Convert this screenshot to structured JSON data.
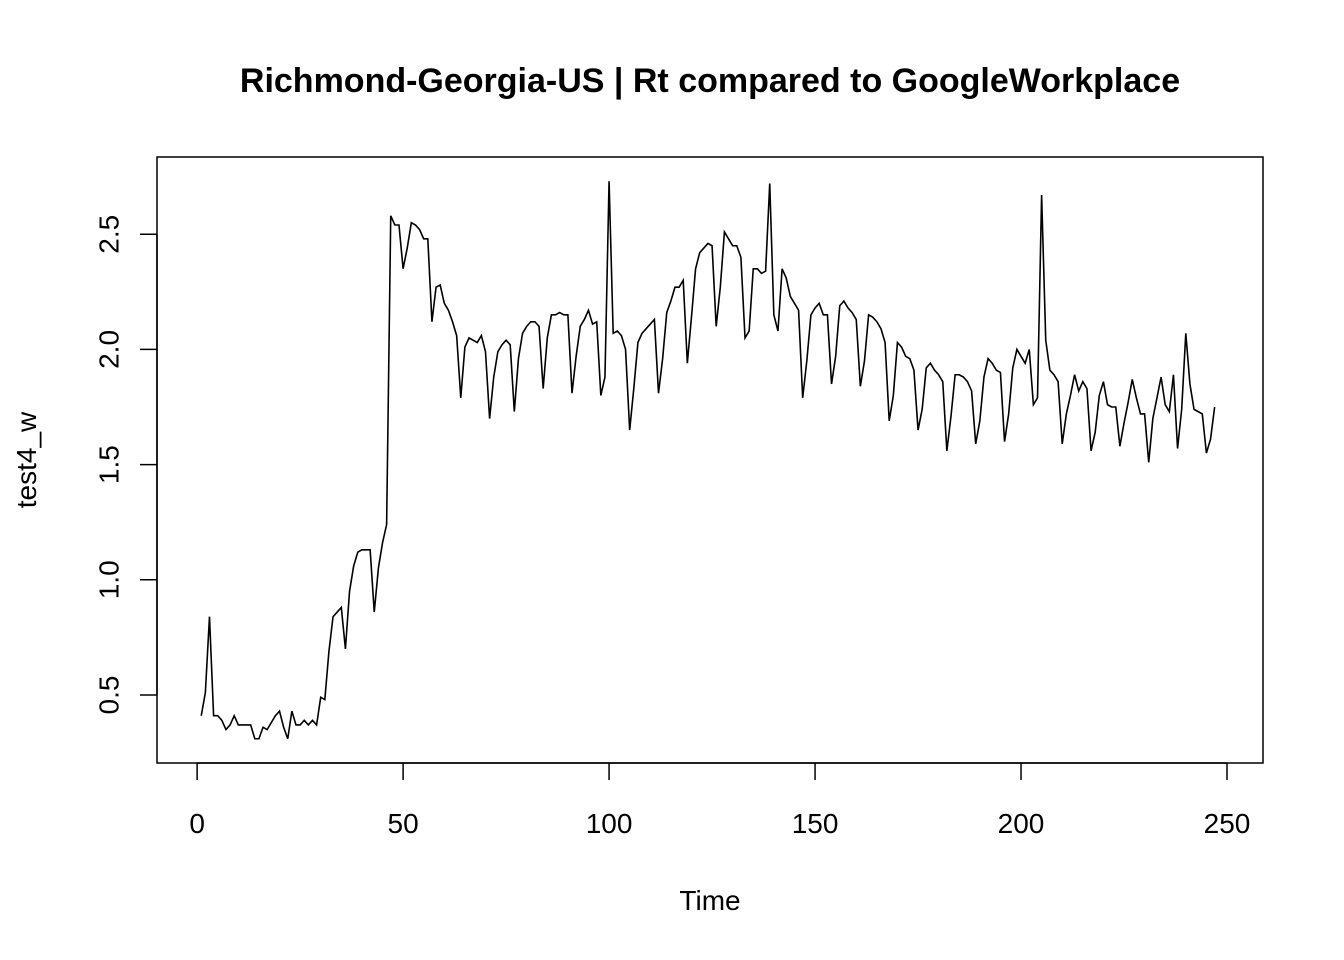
{
  "chart_data": {
    "type": "line",
    "title": "Richmond-Georgia-US | Rt compared to GoogleWorkplace",
    "xlabel": "Time",
    "ylabel": "test4_w",
    "xlim": [
      1,
      248
    ],
    "ylim": [
      0.31,
      2.73
    ],
    "x_ticks": [
      0,
      50,
      100,
      150,
      200,
      250
    ],
    "y_ticks": [
      0.5,
      1.0,
      1.5,
      2.0,
      2.5
    ],
    "x_tick_labels": [
      "0",
      "50",
      "100",
      "150",
      "200",
      "250"
    ],
    "y_tick_labels": [
      "0.5",
      "1.0",
      "1.5",
      "2.0",
      "2.5"
    ],
    "grid": false,
    "legend": "none",
    "series_color": "#000000",
    "series": [
      {
        "x_start": 1,
        "values": [
          0.41,
          0.51,
          0.84,
          0.41,
          0.41,
          0.39,
          0.35,
          0.37,
          0.41,
          0.37,
          0.37,
          0.37,
          0.37,
          0.31,
          0.31,
          0.36,
          0.35,
          0.38,
          0.41,
          0.43,
          0.36,
          0.31,
          0.43,
          0.37,
          0.37,
          0.39,
          0.37,
          0.39,
          0.37,
          0.49,
          0.48,
          0.69,
          0.84,
          0.86,
          0.88,
          0.7,
          0.95,
          1.06,
          1.12,
          1.13,
          1.13,
          1.13,
          0.86,
          1.05,
          1.16,
          1.24,
          2.58,
          2.54,
          2.54,
          2.35,
          2.44,
          2.55,
          2.54,
          2.52,
          2.48,
          2.48,
          2.12,
          2.27,
          2.28,
          2.2,
          2.17,
          2.12,
          2.06,
          1.79,
          2.01,
          2.05,
          2.04,
          2.03,
          2.06,
          1.99,
          1.7,
          1.88,
          1.99,
          2.02,
          2.04,
          2.02,
          1.73,
          1.96,
          2.07,
          2.1,
          2.12,
          2.12,
          2.1,
          1.83,
          2.05,
          2.15,
          2.15,
          2.16,
          2.15,
          2.15,
          1.81,
          1.97,
          2.1,
          2.13,
          2.17,
          2.11,
          2.12,
          1.8,
          1.88,
          2.73,
          2.07,
          2.08,
          2.06,
          2.0,
          1.65,
          1.83,
          2.03,
          2.07,
          2.09,
          2.11,
          2.13,
          1.81,
          1.96,
          2.16,
          2.21,
          2.27,
          2.27,
          2.3,
          1.94,
          2.14,
          2.35,
          2.42,
          2.44,
          2.46,
          2.45,
          2.1,
          2.27,
          2.51,
          2.48,
          2.45,
          2.45,
          2.4,
          2.05,
          2.08,
          2.35,
          2.35,
          2.33,
          2.34,
          2.72,
          2.15,
          2.08,
          2.35,
          2.31,
          2.23,
          2.2,
          2.17,
          1.79,
          1.95,
          2.15,
          2.18,
          2.2,
          2.15,
          2.15,
          1.85,
          1.97,
          2.19,
          2.21,
          2.18,
          2.16,
          2.13,
          1.84,
          1.95,
          2.15,
          2.14,
          2.12,
          2.09,
          2.03,
          1.69,
          1.8,
          2.03,
          2.01,
          1.97,
          1.96,
          1.91,
          1.65,
          1.74,
          1.92,
          1.94,
          1.91,
          1.89,
          1.86,
          1.56,
          1.71,
          1.89,
          1.89,
          1.88,
          1.86,
          1.82,
          1.59,
          1.69,
          1.88,
          1.96,
          1.94,
          1.91,
          1.9,
          1.6,
          1.72,
          1.92,
          2.0,
          1.97,
          1.94,
          2.0,
          1.76,
          1.79,
          2.67,
          2.04,
          1.91,
          1.89,
          1.86,
          1.59,
          1.72,
          1.8,
          1.89,
          1.82,
          1.86,
          1.83,
          1.56,
          1.64,
          1.8,
          1.86,
          1.76,
          1.75,
          1.75,
          1.58,
          1.68,
          1.77,
          1.87,
          1.79,
          1.72,
          1.72,
          1.51,
          1.7,
          1.79,
          1.88,
          1.76,
          1.73,
          1.89,
          1.57,
          1.74,
          2.07,
          1.85,
          1.74,
          1.73,
          1.72,
          1.55,
          1.61,
          1.75
        ]
      }
    ]
  }
}
